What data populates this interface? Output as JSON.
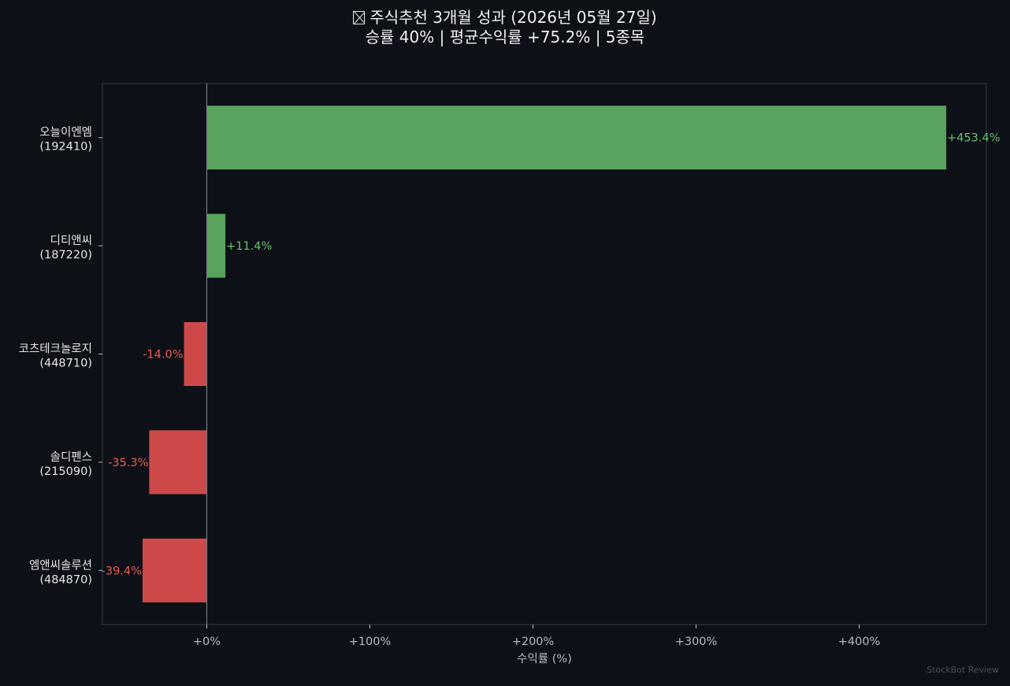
{
  "header": {
    "title_line1": "주식추천 3개월 성과  (2026년 05월 27일)",
    "title_line2": "승률 40%  |  평균수익률 +75.2%  |  5종목"
  },
  "watermark": "StockBot Review",
  "colors": {
    "background": "#0d1017",
    "positive": "#5aa35e",
    "negative": "#cd4a48",
    "positive_label": "#6ac06f",
    "negative_label": "#ef5a52",
    "axis_frame": "#363b44",
    "zero_line": "#767b86",
    "text": "#e6e6e6",
    "tick_text": "#b5b9c0"
  },
  "chart_data": {
    "type": "bar",
    "orientation": "horizontal",
    "xlabel": "수익률 (%)",
    "ylabel": "",
    "xlim": [
      -64,
      478
    ],
    "xticks": [
      0,
      100,
      200,
      300,
      400
    ],
    "xtick_labels": [
      "+0%",
      "+100%",
      "+200%",
      "+300%",
      "+400%"
    ],
    "grid": false,
    "categories": [
      {
        "name": "오늘이엔엠",
        "code": "(192410)"
      },
      {
        "name": "디티앤씨",
        "code": "(187220)"
      },
      {
        "name": "코츠테크놀로지",
        "code": "(448710)"
      },
      {
        "name": "솔디펜스",
        "code": "(215090)"
      },
      {
        "name": "엠앤씨솔루션",
        "code": "(484870)"
      }
    ],
    "values": [
      453.4,
      11.4,
      -14.0,
      -35.3,
      -39.4
    ],
    "value_labels": [
      "+453.4%",
      "+11.4%",
      "-14.0%",
      "-35.3%",
      "-39.4%"
    ]
  }
}
